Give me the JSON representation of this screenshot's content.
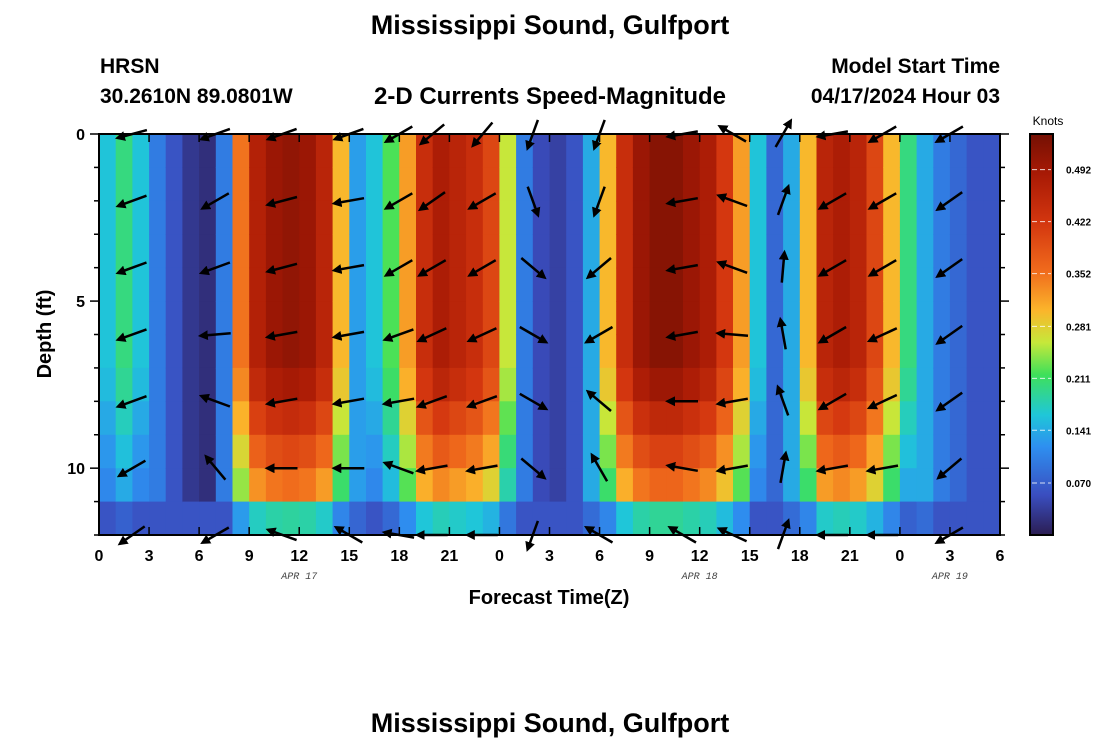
{
  "header": {
    "title": "Mississippi Sound, Gulfport",
    "station": "HRSN",
    "coordinates": "30.2610N  89.0801W",
    "subtitle": "2-D Currents Speed-Magnitude",
    "model_start_label": "Model Start Time",
    "model_start_value": "04/17/2024 Hour 03",
    "bottom_title": "Mississippi Sound, Gulfport"
  },
  "chart_data": {
    "type": "heatmap",
    "title": "2-D Currents Speed-Magnitude",
    "xlabel": "Forecast Time(Z)",
    "ylabel": "Depth (ft)",
    "x_range_hours": [
      0,
      54
    ],
    "y_range_ft": [
      0,
      12
    ],
    "x_ticks": [
      "0",
      "3",
      "6",
      "9",
      "12",
      "15",
      "18",
      "21",
      "0",
      "3",
      "6",
      "9",
      "12",
      "15",
      "18",
      "21",
      "0",
      "3",
      "6"
    ],
    "y_ticks": [
      "0",
      "5",
      "10"
    ],
    "date_labels": [
      {
        "text": "APR 17",
        "hour": 12
      },
      {
        "text": "APR 18",
        "hour": 36
      },
      {
        "text": "APR 19",
        "hour": 51
      }
    ],
    "colorbar": {
      "unit": "Knots",
      "ticks": [
        "0.492",
        "0.422",
        "0.352",
        "0.281",
        "0.211",
        "0.141",
        "0.070"
      ],
      "tick_values": [
        0.492,
        0.422,
        0.352,
        0.281,
        0.211,
        0.141,
        0.07
      ],
      "min": 0.0,
      "max": 0.54
    },
    "speed_profile": {
      "hours": [
        0,
        1,
        2,
        3,
        4,
        5,
        6,
        7,
        8,
        9,
        10,
        11,
        12,
        13,
        14,
        15,
        16,
        17,
        18,
        19,
        20,
        21,
        22,
        23,
        24,
        25,
        26,
        27,
        28,
        29,
        30,
        31,
        32,
        33,
        34,
        35,
        36,
        37,
        38,
        39,
        40,
        41,
        42,
        43,
        44,
        45,
        46,
        47,
        48,
        49,
        50,
        51,
        52,
        53,
        54
      ],
      "surface_speed_knots": [
        0.16,
        0.2,
        0.16,
        0.1,
        0.06,
        0.03,
        0.02,
        0.1,
        0.35,
        0.47,
        0.5,
        0.51,
        0.5,
        0.46,
        0.3,
        0.13,
        0.16,
        0.22,
        0.32,
        0.44,
        0.48,
        0.46,
        0.44,
        0.4,
        0.26,
        0.1,
        0.05,
        0.04,
        0.06,
        0.14,
        0.3,
        0.44,
        0.5,
        0.52,
        0.52,
        0.5,
        0.48,
        0.42,
        0.32,
        0.16,
        0.08,
        0.14,
        0.3,
        0.46,
        0.48,
        0.46,
        0.4,
        0.3,
        0.2,
        0.14,
        0.1,
        0.08,
        0.06,
        0.06,
        0.06
      ],
      "depth_decay_per_ft": 0.026,
      "seafloor_speed_knots": 0.06
    },
    "vectors": {
      "hours": [
        2,
        7,
        11,
        15,
        18,
        20,
        23,
        26,
        30,
        35,
        38,
        41,
        44,
        47,
        51
      ],
      "depths_ft": [
        0,
        2,
        4,
        6,
        8,
        10,
        12
      ],
      "direction_deg": [
        [
          255,
          250,
          250,
          250,
          240,
          230,
          220,
          200,
          200,
          260,
          300,
          30,
          260,
          240,
          240
        ],
        [
          250,
          240,
          255,
          260,
          240,
          235,
          240,
          160,
          200,
          260,
          290,
          20,
          240,
          240,
          235
        ],
        [
          250,
          250,
          255,
          260,
          240,
          240,
          240,
          130,
          230,
          260,
          290,
          5,
          240,
          240,
          235
        ],
        [
          250,
          265,
          260,
          260,
          250,
          245,
          245,
          120,
          240,
          260,
          275,
          350,
          240,
          245,
          235
        ],
        [
          250,
          290,
          260,
          260,
          260,
          250,
          250,
          120,
          310,
          270,
          260,
          340,
          240,
          245,
          235
        ],
        [
          240,
          320,
          270,
          270,
          290,
          260,
          260,
          130,
          330,
          280,
          260,
          10,
          260,
          260,
          230
        ],
        [
          235,
          240,
          290,
          300,
          280,
          270,
          270,
          200,
          300,
          300,
          295,
          20,
          270,
          270,
          240
        ]
      ]
    }
  }
}
